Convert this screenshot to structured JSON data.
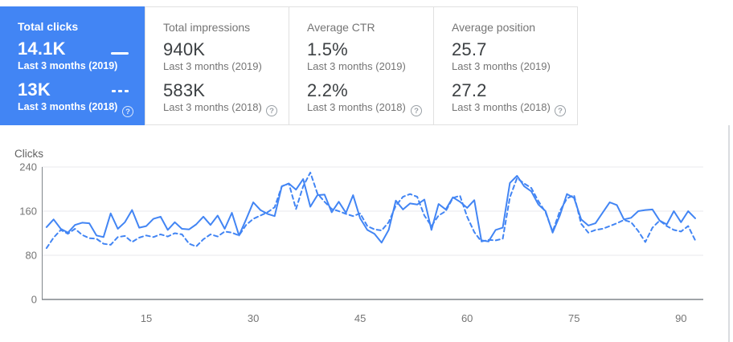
{
  "help_glyph": "?",
  "colors": {
    "selected_card_bg": "#4285f4",
    "line_blue": "#4285f4",
    "grid_light": "#e8eaed",
    "axis_gray": "#80868b",
    "tick_text": "#757575",
    "card_border": "#e0e0e0"
  },
  "cards": [
    {
      "title": "Total clicks",
      "selected": true,
      "rows": [
        {
          "value": "14.1K",
          "label": "Last 3 months (2019)",
          "marker": "solid-line"
        },
        {
          "value": "13K",
          "label": "Last 3 months (2018)",
          "marker": "dashed-line"
        }
      ]
    },
    {
      "title": "Total impressions",
      "selected": false,
      "rows": [
        {
          "value": "940K",
          "label": "Last 3 months (2019)"
        },
        {
          "value": "583K",
          "label": "Last 3 months (2018)"
        }
      ]
    },
    {
      "title": "Average CTR",
      "selected": false,
      "rows": [
        {
          "value": "1.5%",
          "label": "Last 3 months (2019)"
        },
        {
          "value": "2.2%",
          "label": "Last 3 months (2018)"
        }
      ]
    },
    {
      "title": "Average position",
      "selected": false,
      "rows": [
        {
          "value": "25.7",
          "label": "Last 3 months (2019)"
        },
        {
          "value": "27.2",
          "label": "Last 3 months (2018)"
        }
      ]
    }
  ],
  "chart_data": {
    "type": "line",
    "ylabel": "Clicks",
    "ylim": [
      0,
      240
    ],
    "yticks": [
      0,
      80,
      160,
      240
    ],
    "xticks": [
      15,
      30,
      45,
      60,
      75,
      90
    ],
    "x_range": [
      1,
      92
    ],
    "grid": "horizontal",
    "legend_position": "none",
    "series": [
      {
        "name": "Last 3 months (2019)",
        "style": "solid",
        "color": "#4285f4",
        "values": [
          131,
          145,
          128,
          121,
          135,
          139,
          138,
          116,
          113,
          156,
          128,
          140,
          162,
          130,
          133,
          146,
          150,
          126,
          140,
          128,
          127,
          136,
          150,
          135,
          152,
          128,
          157,
          116,
          145,
          176,
          162,
          155,
          151,
          205,
          210,
          199,
          218,
          168,
          189,
          190,
          158,
          177,
          157,
          189,
          147,
          126,
          119,
          103,
          126,
          179,
          163,
          174,
          172,
          181,
          126,
          173,
          163,
          185,
          177,
          166,
          180,
          107,
          105,
          126,
          130,
          211,
          224,
          205,
          196,
          172,
          160,
          121,
          152,
          191,
          184,
          145,
          134,
          138,
          157,
          176,
          171,
          145,
          148,
          160,
          162,
          163,
          143,
          136,
          160,
          140,
          160,
          147
        ]
      },
      {
        "name": "Last 3 months (2018)",
        "style": "dashed",
        "color": "#4285f4",
        "values": [
          93,
          112,
          126,
          119,
          128,
          117,
          111,
          110,
          101,
          99,
          113,
          115,
          104,
          112,
          116,
          113,
          118,
          114,
          120,
          118,
          101,
          96,
          109,
          118,
          114,
          123,
          121,
          116,
          135,
          146,
          152,
          158,
          167,
          205,
          210,
          164,
          205,
          230,
          192,
          177,
          164,
          160,
          155,
          151,
          156,
          133,
          127,
          125,
          140,
          170,
          186,
          191,
          186,
          152,
          133,
          152,
          160,
          184,
          188,
          150,
          122,
          105,
          108,
          107,
          110,
          185,
          220,
          210,
          202,
          178,
          158,
          123,
          160,
          183,
          189,
          137,
          121,
          126,
          128,
          133,
          138,
          144,
          140,
          124,
          104,
          130,
          143,
          133,
          126,
          123,
          133,
          107
        ]
      }
    ]
  }
}
